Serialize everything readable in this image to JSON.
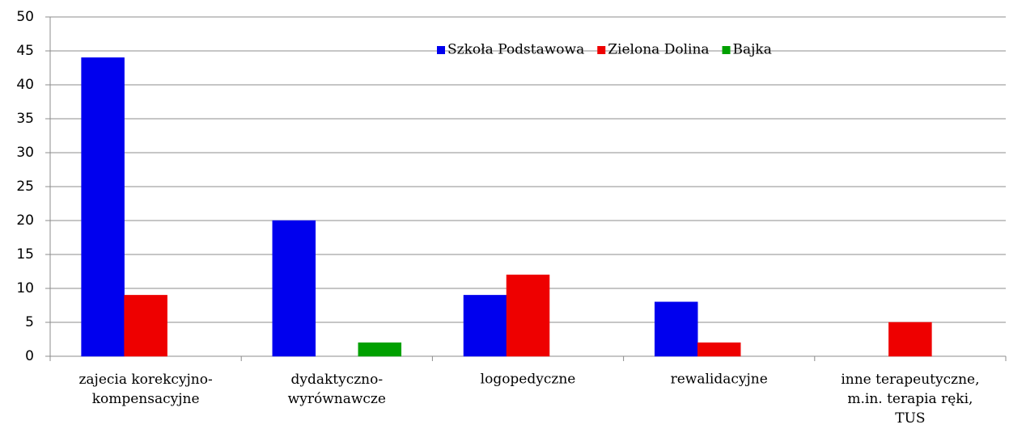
{
  "chart_data": {
    "type": "bar",
    "categories": [
      "zajecia korekcyjno-\nkompensacyjne",
      "dydaktyczno-\nwyrównawcze",
      "logopedyczne",
      "rewalidacyjne",
      "inne terapeutyczne,\nm.in. terapia ręki,\nTUS"
    ],
    "series": [
      {
        "name": "Szkoła Podstawowa",
        "color": "#0000ee",
        "values": [
          44,
          20,
          9,
          8,
          0
        ]
      },
      {
        "name": "Zielona Dolina",
        "color": "#ee0000",
        "values": [
          9,
          0,
          12,
          2,
          5
        ]
      },
      {
        "name": "Bajka",
        "color": "#00a000",
        "values": [
          0,
          2,
          0,
          0,
          0
        ]
      }
    ],
    "ylim": [
      0,
      50
    ],
    "yticks": [
      0,
      5,
      10,
      15,
      20,
      25,
      30,
      35,
      40,
      45,
      50
    ],
    "grid": true,
    "legend": "top"
  }
}
